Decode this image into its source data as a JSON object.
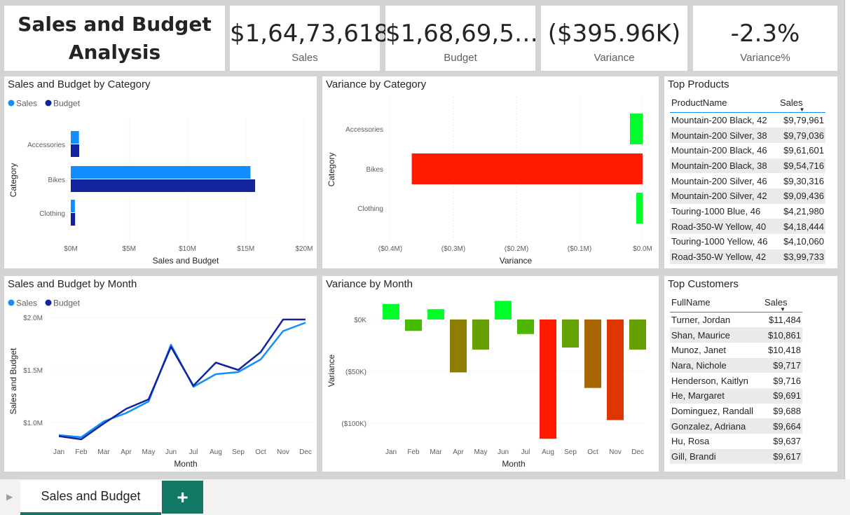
{
  "report": {
    "title": "Sales and Budget Analysis"
  },
  "cards": [
    {
      "value": "$1,64,73,618",
      "label": "Sales"
    },
    {
      "value": "$1,68,69,5…",
      "label": "Budget"
    },
    {
      "value": "($395.96K)",
      "label": "Variance"
    },
    {
      "value": "-2.3%",
      "label": "Variance%"
    }
  ],
  "colors": {
    "sales": "#118dff",
    "budget": "#12239e",
    "positive": "#00ff2a",
    "negative": "#ff1a00",
    "accent": "#117865"
  },
  "visuals": {
    "sales_budget_category": {
      "title": "Sales and Budget by Category",
      "legend": [
        "Sales",
        "Budget"
      ],
      "xlabel": "Sales and Budget",
      "ylabel": "Category",
      "xticks": [
        "$0M",
        "$5M",
        "$10M",
        "$15M",
        "$20M"
      ]
    },
    "variance_category": {
      "title": "Variance by Category",
      "xlabel": "Variance",
      "ylabel": "Category",
      "xticks": [
        "($0.4M)",
        "($0.3M)",
        "($0.2M)",
        "($0.1M)",
        "$0.0M"
      ]
    },
    "sales_budget_month": {
      "title": "Sales and Budget by Month",
      "legend": [
        "Sales",
        "Budget"
      ],
      "xlabel": "Month",
      "ylabel": "Sales and Budget",
      "yticks": [
        "$2.0M",
        "$1.5M",
        "$1.0M"
      ]
    },
    "variance_month": {
      "title": "Variance by Month",
      "xlabel": "Month",
      "ylabel": "Variance",
      "yticks": [
        "$0K",
        "($50K)",
        "($100K)"
      ]
    }
  },
  "chart_data": [
    {
      "type": "bar",
      "orientation": "horizontal",
      "title": "Sales and Budget by Category",
      "xlabel": "Sales and Budget",
      "ylabel": "Category",
      "categories": [
        "Accessories",
        "Bikes",
        "Clothing"
      ],
      "series": [
        {
          "name": "Sales",
          "values": [
            700000,
            15400000,
            350000
          ]
        },
        {
          "name": "Budget",
          "values": [
            720000,
            15800000,
            370000
          ]
        }
      ],
      "xlim": [
        0,
        20000000
      ],
      "legend": "top-left",
      "grid": true
    },
    {
      "type": "bar",
      "orientation": "horizontal",
      "title": "Variance by Category",
      "xlabel": "Variance",
      "ylabel": "Category",
      "categories": [
        "Accessories",
        "Bikes",
        "Clothing"
      ],
      "values": [
        -20000,
        -366000,
        -10000
      ],
      "xlim": [
        -400000,
        0
      ],
      "grid": true
    },
    {
      "type": "line",
      "title": "Sales and Budget by Month",
      "xlabel": "Month",
      "ylabel": "Sales and Budget",
      "x": [
        "Jan",
        "Feb",
        "Mar",
        "Apr",
        "May",
        "Jun",
        "Jul",
        "Aug",
        "Sep",
        "Oct",
        "Nov",
        "Dec"
      ],
      "series": [
        {
          "name": "Sales",
          "values": [
            880000,
            860000,
            1010000,
            1090000,
            1200000,
            1740000,
            1340000,
            1460000,
            1480000,
            1600000,
            1870000,
            1950000
          ]
        },
        {
          "name": "Budget",
          "values": [
            870000,
            840000,
            990000,
            1130000,
            1220000,
            1720000,
            1350000,
            1570000,
            1500000,
            1670000,
            1980000,
            1980000
          ]
        }
      ],
      "ylim": [
        800000,
        2050000
      ],
      "legend": "top-left",
      "grid": true
    },
    {
      "type": "bar",
      "title": "Variance by Month",
      "xlabel": "Month",
      "ylabel": "Variance",
      "categories": [
        "Jan",
        "Feb",
        "Mar",
        "Apr",
        "May",
        "Jun",
        "Jul",
        "Aug",
        "Sep",
        "Oct",
        "Nov",
        "Dec"
      ],
      "values": [
        15000,
        -11000,
        10000,
        -51000,
        -29000,
        18000,
        -14000,
        -115000,
        -27000,
        -66000,
        -97000,
        -29000
      ],
      "ylim": [
        -120000,
        20000
      ],
      "grid": true
    }
  ],
  "top_products": {
    "title": "Top Products",
    "columns": [
      "ProductName",
      "Sales"
    ],
    "rows": [
      [
        "Mountain-200 Black, 42",
        "$9,79,961"
      ],
      [
        "Mountain-200 Silver, 38",
        "$9,79,036"
      ],
      [
        "Mountain-200 Black, 46",
        "$9,61,601"
      ],
      [
        "Mountain-200 Black, 38",
        "$9,54,716"
      ],
      [
        "Mountain-200 Silver, 46",
        "$9,30,316"
      ],
      [
        "Mountain-200 Silver, 42",
        "$9,09,436"
      ],
      [
        "Touring-1000 Blue, 46",
        "$4,21,980"
      ],
      [
        "Road-350-W Yellow, 40",
        "$4,18,444"
      ],
      [
        "Touring-1000 Yellow, 46",
        "$4,10,060"
      ],
      [
        "Road-350-W Yellow, 42",
        "$3,99,733"
      ]
    ]
  },
  "top_customers": {
    "title": "Top Customers",
    "columns": [
      "FullName",
      "Sales"
    ],
    "rows": [
      [
        "Turner, Jordan",
        "$11,484"
      ],
      [
        "Shan, Maurice",
        "$10,861"
      ],
      [
        "Munoz, Janet",
        "$10,418"
      ],
      [
        "Nara, Nichole",
        "$9,717"
      ],
      [
        "Henderson, Kaitlyn",
        "$9,716"
      ],
      [
        "He, Margaret",
        "$9,691"
      ],
      [
        "Dominguez, Randall",
        "$9,688"
      ],
      [
        "Gonzalez, Adriana",
        "$9,664"
      ],
      [
        "Hu, Rosa",
        "$9,637"
      ],
      [
        "Gill, Brandi",
        "$9,617"
      ]
    ]
  },
  "tabs": {
    "active": "Sales and Budget",
    "add_icon": "plus-icon",
    "add_label": "+",
    "arrow_icon": "chevron-right-icon"
  }
}
